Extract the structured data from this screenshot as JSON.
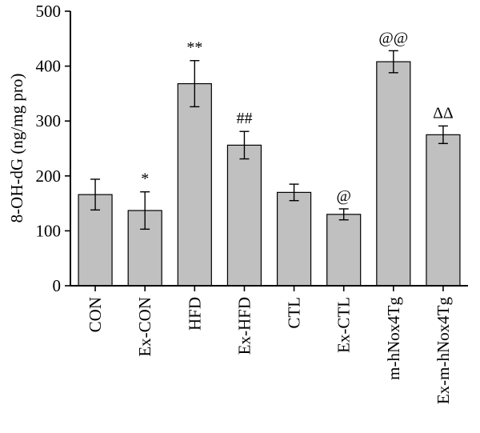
{
  "chart_data": {
    "type": "bar",
    "ylabel": "8-OH-dG (ng/mg pro)",
    "xlabel": "",
    "title": "",
    "ylim": [
      0,
      500
    ],
    "yticks": [
      0,
      100,
      200,
      300,
      400,
      500
    ],
    "grid": false,
    "categories": [
      "CON",
      "Ex-CON",
      "HFD",
      "Ex-HFD",
      "CTL",
      "Ex-CTL",
      "m-hNox4Tg",
      "Ex-m-hNox4Tg"
    ],
    "values": [
      166,
      137,
      368,
      256,
      170,
      130,
      408,
      275
    ],
    "errors": [
      28,
      34,
      42,
      25,
      15,
      10,
      20,
      16
    ],
    "annotations": [
      "",
      "*",
      "**",
      "##",
      "",
      "@",
      "@@",
      "ΔΔ"
    ],
    "bar_color": "#c0c0c0"
  }
}
